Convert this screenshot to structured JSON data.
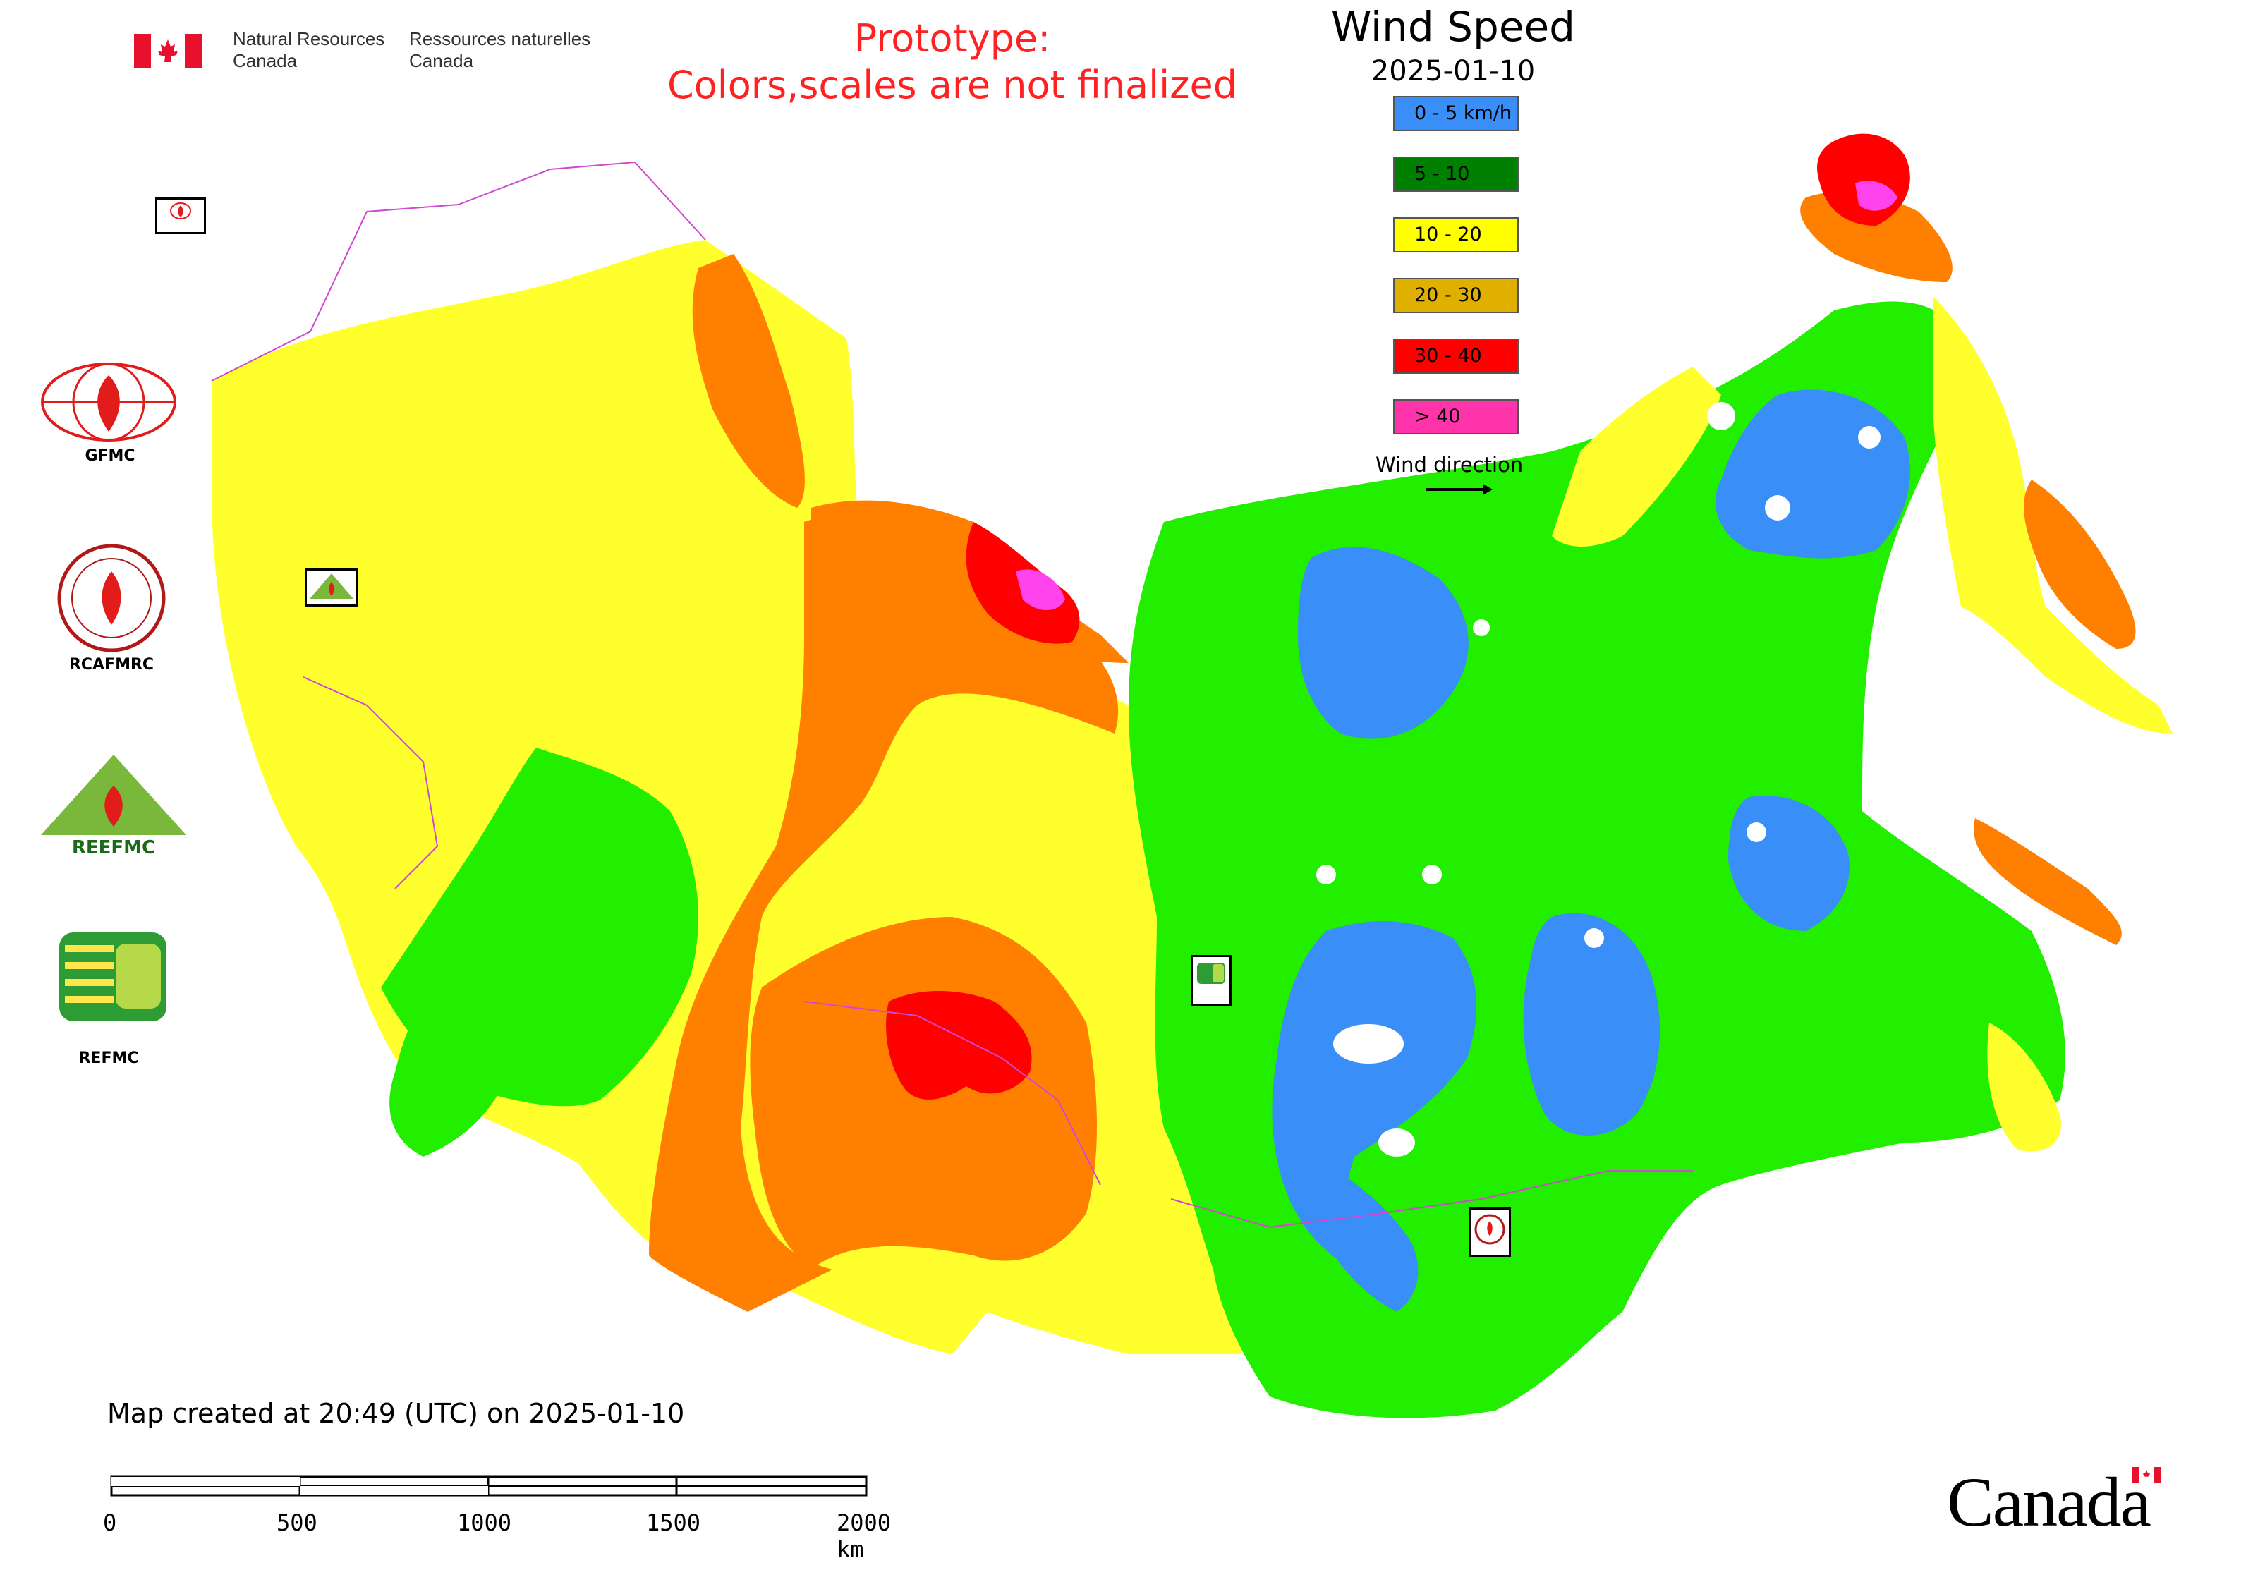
{
  "header": {
    "agency_en_line1": "Natural Resources",
    "agency_en_line2": "Canada",
    "agency_fr_line1": "Ressources naturelles",
    "agency_fr_line2": "Canada",
    "prototype_line1": "Prototype:",
    "prototype_line2": "Colors,scales are not finalized"
  },
  "title": "Wind Speed",
  "date": "2025-01-10",
  "legend": {
    "items": [
      {
        "label": "0 - 5 km/h",
        "color": "#3a8ef7"
      },
      {
        "label": "5 - 10",
        "color": "#008000"
      },
      {
        "label": "10 - 20",
        "color": "#ffff00"
      },
      {
        "label": "20 - 30",
        "color": "#e0b000"
      },
      {
        "label": "30 - 40",
        "color": "#ff0000"
      },
      {
        "label": "> 40",
        "color": "#ff33aa"
      }
    ],
    "wind_direction_label": "Wind direction"
  },
  "logos": {
    "gfmc": "GFMC",
    "rcafmrc": "RCAFMRC",
    "reefmc_logo_text": "REEFMC",
    "refmc": "REFMC"
  },
  "map_markers": {
    "gfmc_small": "GFMC",
    "reefmc_small": "REEFMC",
    "refmc_small": "REFMC",
    "rcafmrc_small": "RCAFMRC"
  },
  "footer": {
    "created": "Map created at 20:49 (UTC) on 2025-01-10",
    "scale_labels": [
      "0",
      "500",
      "1000",
      "1500",
      "2000 km"
    ]
  },
  "wordmark": "Canada",
  "colors": {
    "map_blue": "#3a8ef7",
    "map_green": "#22ee00",
    "map_yellow": "#ffff2e",
    "map_orange": "#ff8000",
    "map_red": "#ff0000",
    "map_magenta": "#ff44ee",
    "boundary": "#d048d0"
  }
}
